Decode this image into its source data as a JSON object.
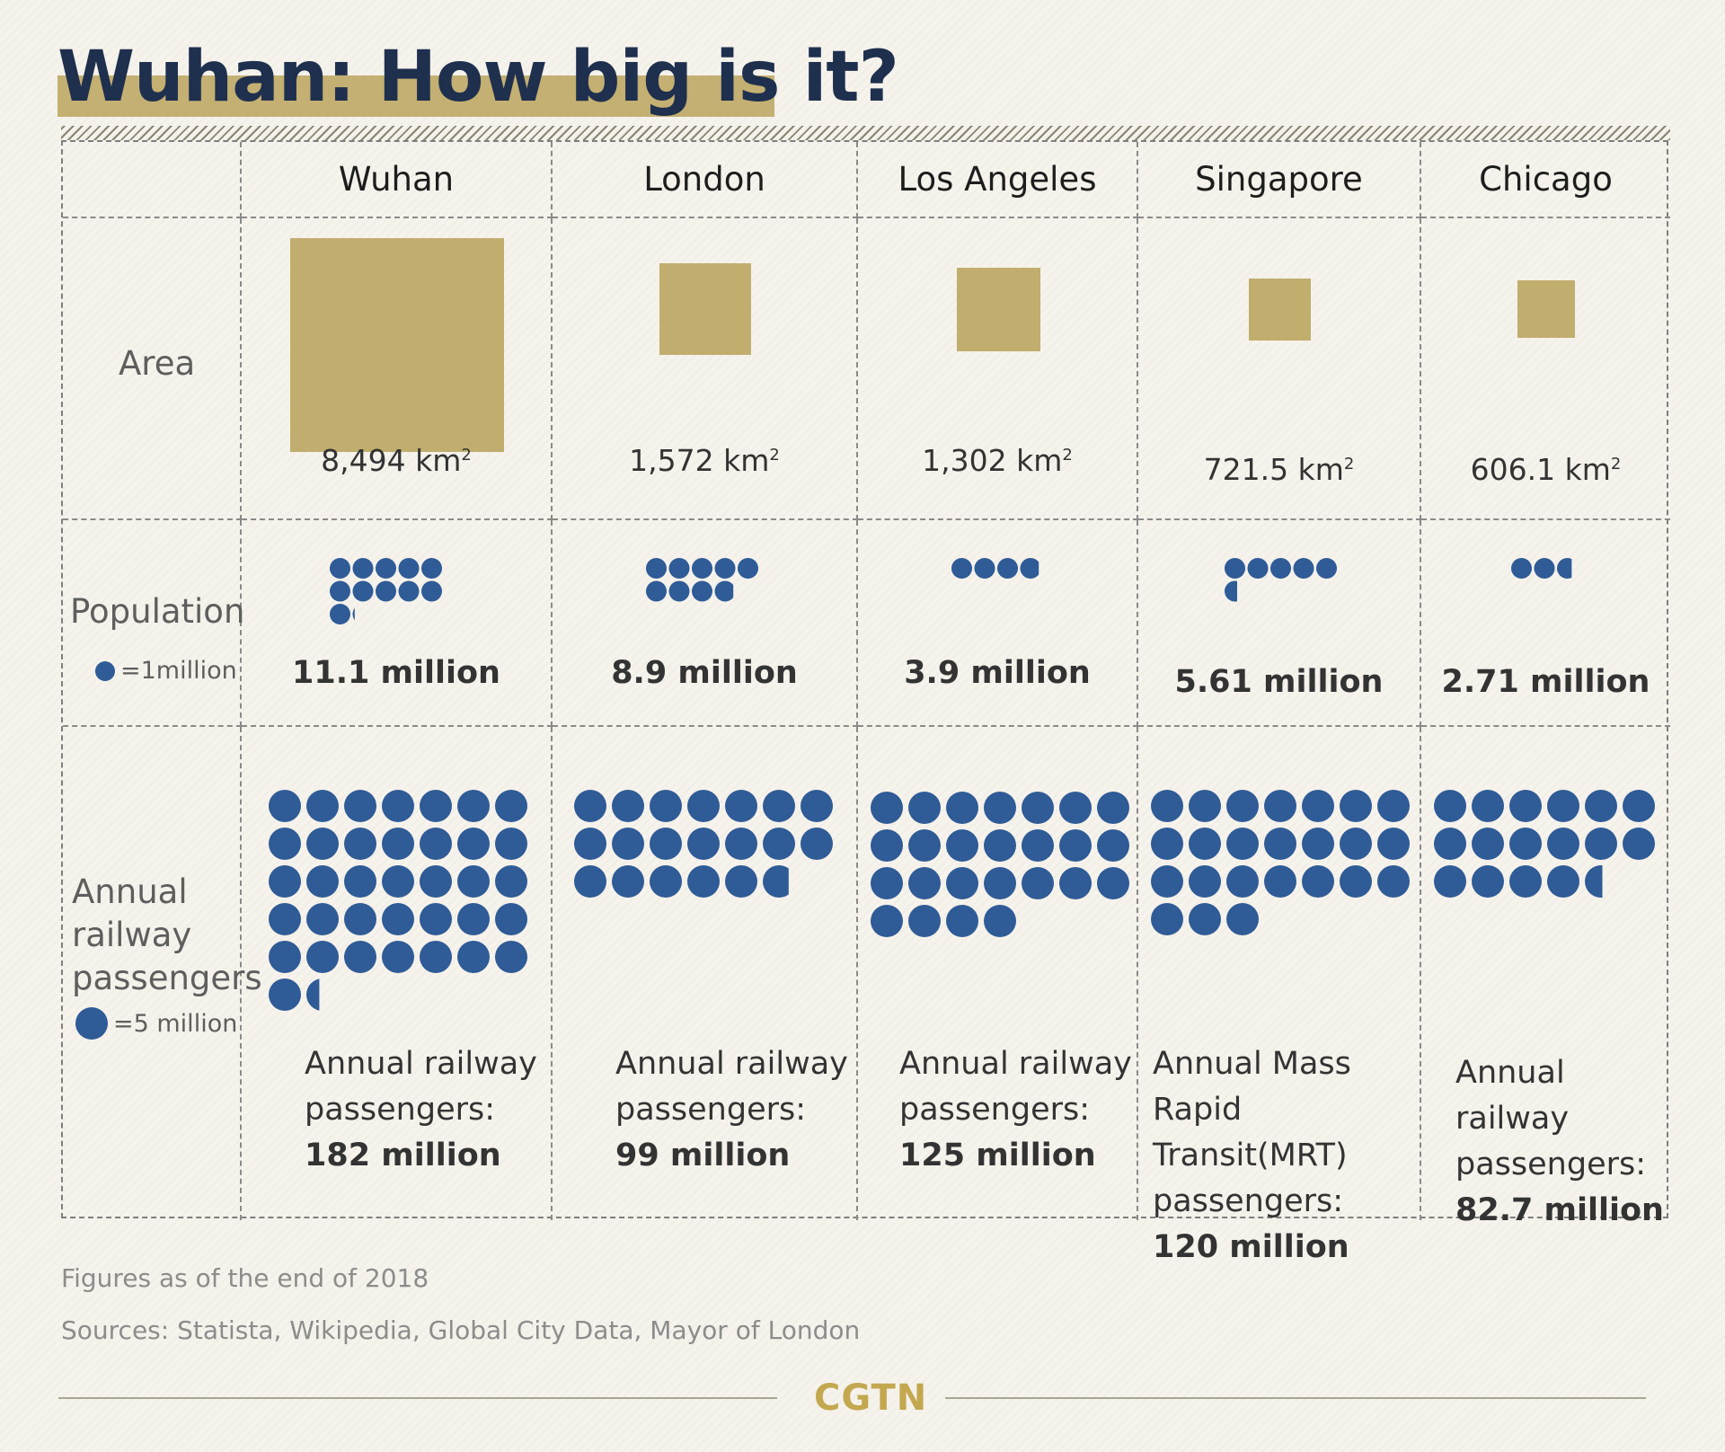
{
  "title": "Wuhan: How big is it?",
  "row_labels": {
    "area": "Area",
    "population": "Population",
    "population_legend": "=1million",
    "rail_line1": "Annual",
    "rail_line2": "railway",
    "rail_line3": "passengers",
    "rail_legend": "=5 million"
  },
  "footer": {
    "note": "Figures as of the end of 2018",
    "sources": "Sources: Statista, Wikipedia, Global City Data, Mayor of London",
    "brand": "CGTN"
  },
  "colors": {
    "background": "#f6f3ec",
    "title_text": "#1f2f4e",
    "title_highlight": "#c3b072",
    "area_square": "#c1ae6e",
    "dot": "#2f5b96",
    "brand": "#c4a84f"
  },
  "chart_data": {
    "type": "table",
    "units": {
      "area": "km²",
      "population_dot": 1,
      "railway_dot": 5
    },
    "cities": [
      {
        "name": "Wuhan",
        "area_km2": 8494,
        "area_label": "8,494 km",
        "area_unit_sup": "2",
        "population_millions": 11.1,
        "population_label": "11.1 million",
        "rail_millions": 182,
        "rail_line1": "Annual railway",
        "rail_line2": "passengers:",
        "rail_line3": "",
        "rail_value": "182 million"
      },
      {
        "name": "London",
        "area_km2": 1572,
        "area_label": "1,572 km",
        "area_unit_sup": "2",
        "population_millions": 8.9,
        "population_label": "8.9 million",
        "rail_millions": 99,
        "rail_line1": "Annual railway",
        "rail_line2": "passengers:",
        "rail_line3": "",
        "rail_value": "99 million"
      },
      {
        "name": "Los Angeles",
        "area_km2": 1302,
        "area_label": "1,302 km",
        "area_unit_sup": "2",
        "population_millions": 3.9,
        "population_label": "3.9 million",
        "rail_millions": 125,
        "rail_line1": "Annual railway",
        "rail_line2": "passengers:",
        "rail_line3": "",
        "rail_value": "125 million"
      },
      {
        "name": "Singapore",
        "area_km2": 721.5,
        "area_label": "721.5 km",
        "area_unit_sup": "2",
        "population_millions": 5.61,
        "population_label": "5.61 million",
        "rail_millions": 120,
        "rail_line1": "Annual Mass Rapid",
        "rail_line2": "Transit(MRT)",
        "rail_line3": "passengers:",
        "rail_value": "120 million"
      },
      {
        "name": "Chicago",
        "area_km2": 606.1,
        "area_label": "606.1 km",
        "area_unit_sup": "2",
        "population_millions": 2.71,
        "population_label": "2.71 million",
        "rail_millions": 82.7,
        "rail_line1": "Annual railway",
        "rail_line2": "passengers:",
        "rail_line3": "",
        "rail_value": "82.7 million"
      }
    ]
  }
}
